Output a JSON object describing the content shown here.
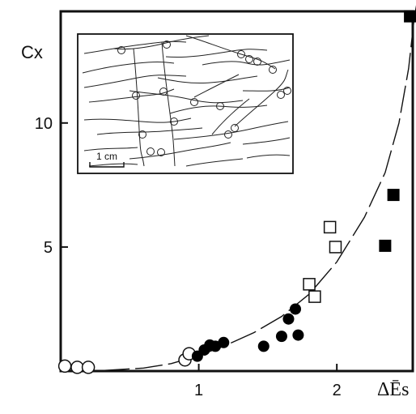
{
  "chart_data": {
    "type": "scatter",
    "ylabel": "Cx",
    "xlabel": "ΔĒs",
    "xlim": [
      0,
      2.55
    ],
    "ylim": [
      0,
      14.5
    ],
    "x_ticks": [
      1,
      2
    ],
    "y_ticks": [
      5,
      10
    ],
    "x_tick_labels": [
      "1",
      "2"
    ],
    "y_tick_labels": [
      "5",
      "10"
    ],
    "grid": false,
    "legend": "none",
    "series": [
      {
        "marker": "open-circle",
        "points": [
          [
            0.03,
            0.2
          ],
          [
            0.12,
            0.15
          ],
          [
            0.2,
            0.15
          ],
          [
            0.9,
            0.45
          ],
          [
            0.93,
            0.7
          ]
        ]
      },
      {
        "marker": "filled-circle",
        "points": [
          [
            0.99,
            0.6
          ],
          [
            1.04,
            0.85
          ],
          [
            1.08,
            1.05
          ],
          [
            1.12,
            1.0
          ],
          [
            1.18,
            1.15
          ],
          [
            1.47,
            1.0
          ],
          [
            1.6,
            1.4
          ],
          [
            1.65,
            2.1
          ],
          [
            1.7,
            2.5
          ],
          [
            1.72,
            1.45
          ]
        ]
      },
      {
        "marker": "open-square",
        "points": [
          [
            1.8,
            3.5
          ],
          [
            1.84,
            3.0
          ],
          [
            1.95,
            5.8
          ],
          [
            1.99,
            5.0
          ]
        ]
      },
      {
        "marker": "filled-square",
        "points": [
          [
            2.35,
            5.05
          ],
          [
            2.41,
            7.1
          ],
          [
            2.53,
            14.3
          ]
        ]
      }
    ],
    "fit_curve": {
      "style": "long-dashed",
      "points": [
        [
          0.3,
          0.02
        ],
        [
          0.6,
          0.12
        ],
        [
          0.8,
          0.3
        ],
        [
          1.0,
          0.62
        ],
        [
          1.2,
          1.05
        ],
        [
          1.4,
          1.55
        ],
        [
          1.6,
          2.2
        ],
        [
          1.8,
          3.1
        ],
        [
          2.0,
          4.4
        ],
        [
          2.2,
          6.2
        ],
        [
          2.35,
          8.0
        ],
        [
          2.45,
          10.0
        ],
        [
          2.52,
          12.2
        ],
        [
          2.56,
          14.2
        ],
        [
          2.58,
          15.3
        ]
      ]
    },
    "inset": {
      "type": "sketch",
      "scale_label": "1 cm"
    }
  }
}
